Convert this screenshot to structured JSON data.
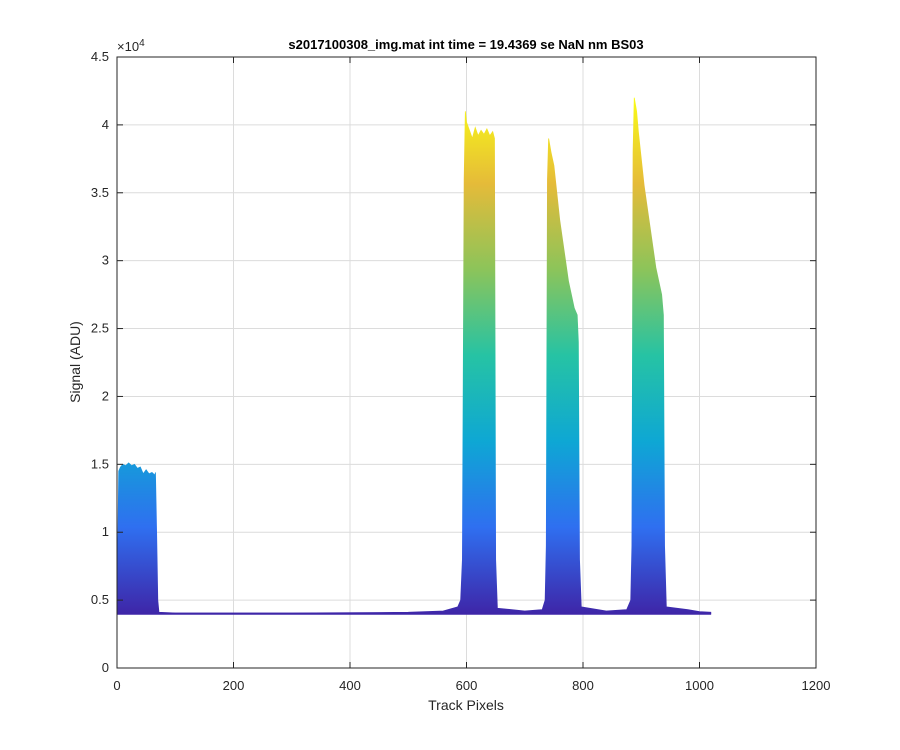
{
  "chart_data": {
    "type": "area",
    "title": "s2017100308_img.mat int time = 19.4369 se  NaN nm BS03",
    "xlabel": "Track Pixels",
    "ylabel": "Signal (ADU)",
    "xlim": [
      0,
      1200
    ],
    "ylim": [
      0,
      45000
    ],
    "xticks": [
      "0",
      "200",
      "400",
      "600",
      "800",
      "1000",
      "1200"
    ],
    "yticks": [
      "0",
      "0.5",
      "1",
      "1.5",
      "2",
      "2.5",
      "3",
      "3.5",
      "4",
      "4.5"
    ],
    "y_exponent": "×10",
    "y_exponent_power": "4",
    "grid": true,
    "colormap": [
      "#3e26a8",
      "#2f6ff0",
      "#0ea7d4",
      "#26c3a4",
      "#8cc45a",
      "#e5bb39",
      "#f9fb15"
    ],
    "baseline": 4000,
    "envelope": [
      {
        "x": 0,
        "y": 4200
      },
      {
        "x": 1,
        "y": 7500
      },
      {
        "x": 3,
        "y": 14500
      },
      {
        "x": 6,
        "y": 14800
      },
      {
        "x": 10,
        "y": 15000
      },
      {
        "x": 15,
        "y": 14900
      },
      {
        "x": 20,
        "y": 15100
      },
      {
        "x": 25,
        "y": 14900
      },
      {
        "x": 30,
        "y": 15000
      },
      {
        "x": 35,
        "y": 14700
      },
      {
        "x": 40,
        "y": 14800
      },
      {
        "x": 45,
        "y": 14300
      },
      {
        "x": 50,
        "y": 14600
      },
      {
        "x": 55,
        "y": 14300
      },
      {
        "x": 60,
        "y": 14400
      },
      {
        "x": 65,
        "y": 14200
      },
      {
        "x": 66,
        "y": 14400
      },
      {
        "x": 68,
        "y": 10000
      },
      {
        "x": 70,
        "y": 5000
      },
      {
        "x": 72,
        "y": 4100
      },
      {
        "x": 100,
        "y": 4050
      },
      {
        "x": 300,
        "y": 4050
      },
      {
        "x": 500,
        "y": 4100
      },
      {
        "x": 560,
        "y": 4200
      },
      {
        "x": 585,
        "y": 4500
      },
      {
        "x": 590,
        "y": 5000
      },
      {
        "x": 593,
        "y": 8000
      },
      {
        "x": 596,
        "y": 36000
      },
      {
        "x": 598,
        "y": 41000
      },
      {
        "x": 600,
        "y": 40200
      },
      {
        "x": 605,
        "y": 39600
      },
      {
        "x": 610,
        "y": 39000
      },
      {
        "x": 615,
        "y": 39800
      },
      {
        "x": 620,
        "y": 39200
      },
      {
        "x": 625,
        "y": 39600
      },
      {
        "x": 630,
        "y": 39300
      },
      {
        "x": 635,
        "y": 39700
      },
      {
        "x": 640,
        "y": 39200
      },
      {
        "x": 645,
        "y": 39500
      },
      {
        "x": 648,
        "y": 39000
      },
      {
        "x": 650,
        "y": 8000
      },
      {
        "x": 653,
        "y": 4400
      },
      {
        "x": 700,
        "y": 4200
      },
      {
        "x": 730,
        "y": 4300
      },
      {
        "x": 735,
        "y": 5000
      },
      {
        "x": 737,
        "y": 9000
      },
      {
        "x": 739,
        "y": 36000
      },
      {
        "x": 741,
        "y": 39000
      },
      {
        "x": 745,
        "y": 38000
      },
      {
        "x": 750,
        "y": 37000
      },
      {
        "x": 755,
        "y": 35000
      },
      {
        "x": 760,
        "y": 33000
      },
      {
        "x": 765,
        "y": 31500
      },
      {
        "x": 770,
        "y": 30000
      },
      {
        "x": 775,
        "y": 28500
      },
      {
        "x": 780,
        "y": 27500
      },
      {
        "x": 785,
        "y": 26500
      },
      {
        "x": 790,
        "y": 26000
      },
      {
        "x": 792,
        "y": 24000
      },
      {
        "x": 794,
        "y": 8000
      },
      {
        "x": 797,
        "y": 4500
      },
      {
        "x": 840,
        "y": 4200
      },
      {
        "x": 875,
        "y": 4300
      },
      {
        "x": 882,
        "y": 5000
      },
      {
        "x": 884,
        "y": 9000
      },
      {
        "x": 886,
        "y": 38000
      },
      {
        "x": 888,
        "y": 42000
      },
      {
        "x": 892,
        "y": 41000
      },
      {
        "x": 895,
        "y": 39500
      },
      {
        "x": 900,
        "y": 37500
      },
      {
        "x": 905,
        "y": 35500
      },
      {
        "x": 910,
        "y": 34000
      },
      {
        "x": 915,
        "y": 32500
      },
      {
        "x": 920,
        "y": 31000
      },
      {
        "x": 925,
        "y": 29500
      },
      {
        "x": 930,
        "y": 28500
      },
      {
        "x": 935,
        "y": 27500
      },
      {
        "x": 938,
        "y": 26000
      },
      {
        "x": 940,
        "y": 9000
      },
      {
        "x": 943,
        "y": 4500
      },
      {
        "x": 980,
        "y": 4300
      },
      {
        "x": 1000,
        "y": 4150
      },
      {
        "x": 1020,
        "y": 4100
      }
    ]
  }
}
